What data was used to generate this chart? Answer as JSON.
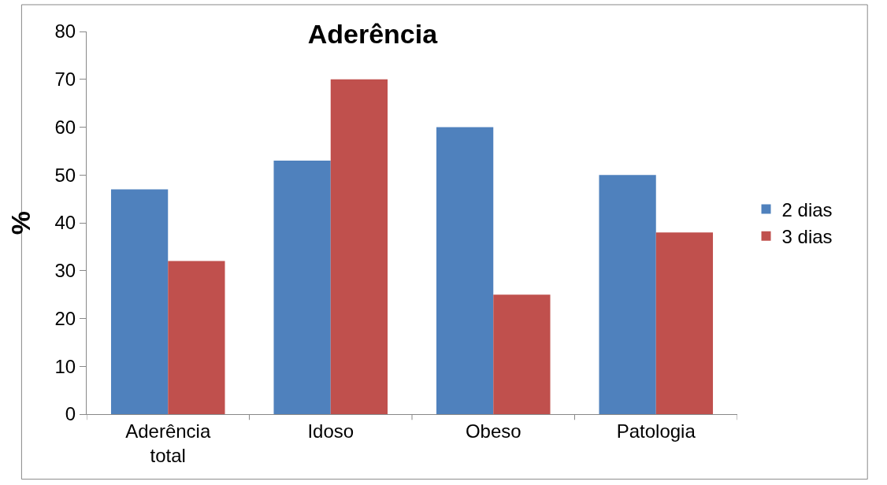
{
  "chart_data": {
    "type": "bar",
    "title": "Aderência",
    "ylabel": "%",
    "categories": [
      "Aderência total",
      "Idoso",
      "Obeso",
      "Patologia"
    ],
    "series": [
      {
        "name": "2 dias",
        "color": "#4f81bd",
        "values": [
          47,
          53,
          60,
          50
        ]
      },
      {
        "name": "3 dias",
        "color": "#c0504d",
        "values": [
          32,
          70,
          25,
          38
        ]
      }
    ],
    "ylim": [
      0,
      80
    ],
    "yticks": [
      0,
      10,
      20,
      30,
      40,
      50,
      60,
      70,
      80
    ],
    "grid": false,
    "legend": "right"
  }
}
